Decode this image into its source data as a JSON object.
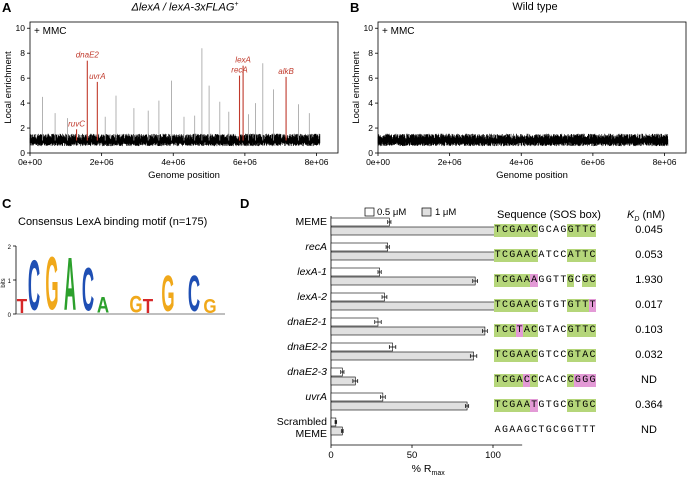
{
  "panel_a": {
    "letter": "A",
    "title_italic": "ΔlexA / lexA-3xFLAG",
    "title_sup": "+",
    "condition": "+ MMC",
    "ylabel": "Local enrichment",
    "xlabel": "Genome position",
    "yticks": [
      "0",
      "2",
      "4",
      "6",
      "8",
      "10"
    ],
    "xticks": [
      "0e+00",
      "2e+06",
      "4e+06",
      "6e+06",
      "8e+06"
    ],
    "colors": {
      "trace": "#000000",
      "peak": "#c0392b",
      "gray_peak": "#a0a0a0"
    },
    "peaks": [
      {
        "label": "ruvC",
        "pos": 1300000.0,
        "height": 1.9
      },
      {
        "label": "dnaE2",
        "pos": 1600000.0,
        "height": 7.4
      },
      {
        "label": "uvrA",
        "pos": 1880000.0,
        "height": 5.7
      },
      {
        "label": "recA",
        "pos": 5850000.0,
        "height": 6.2
      },
      {
        "label": "lexA",
        "pos": 5950000.0,
        "height": 7.0
      },
      {
        "label": "alkB",
        "pos": 7150000.0,
        "height": 6.1
      }
    ]
  },
  "panel_b": {
    "letter": "B",
    "title": "Wild type",
    "condition": "+ MMC",
    "ylabel": "Local enrichment",
    "xlabel": "Genome position",
    "yticks": [
      "0",
      "2",
      "4",
      "6",
      "8",
      "10"
    ],
    "xticks": [
      "0e+00",
      "2e+06",
      "4e+06",
      "6e+06",
      "8e+06"
    ]
  },
  "panel_c": {
    "letter": "C",
    "title": "Consensus LexA binding motif (n=175)",
    "ylabel": "bits",
    "yticks": [
      "0",
      "1",
      "2"
    ]
  },
  "panel_d": {
    "letter": "D",
    "legend": [
      "0.5 μM",
      "1 μM"
    ],
    "xlabel_main": "% R",
    "xlabel_sub": "max",
    "xticks": [
      "0",
      "50",
      "100"
    ],
    "seq_header": "Sequence (SOS box)",
    "kd_header_k": "K",
    "kd_header_sub": "D",
    "kd_header_unit": " (nM)",
    "colors": {
      "green": "#b5d67a",
      "pink": "#e39ad6",
      "bar_light": "#ffffff",
      "bar_dark": "#e0e0e0"
    }
  },
  "chart_data": {
    "type": "bar",
    "title": "",
    "xlabel": "% Rmax",
    "ylabel": "",
    "xlim": [
      0,
      120
    ],
    "categories": [
      "MEME",
      "recA",
      "lexA-1",
      "lexA-2",
      "dnaE2-1",
      "dnaE2-2",
      "dnaE2-3",
      "uvrA",
      "Scrambled MEME"
    ],
    "series": [
      {
        "name": "0.5 μM",
        "values": [
          36,
          35,
          30,
          33,
          29,
          38,
          7,
          32,
          3
        ],
        "errors": [
          1,
          1,
          1,
          1.5,
          2,
          2,
          1,
          1.5,
          0.5
        ]
      },
      {
        "name": "1 μM",
        "values": [
          110,
          108,
          89,
          104,
          95,
          88,
          15,
          84,
          7
        ],
        "errors": [
          1.5,
          1.5,
          1.5,
          1.5,
          1.5,
          2,
          1.5,
          1,
          0.5
        ]
      }
    ],
    "sequences": [
      {
        "seq": "TCGAACGCAGGTTC",
        "green": [
          0,
          1,
          2,
          3,
          4,
          5,
          10,
          11,
          12,
          13
        ],
        "pink": []
      },
      {
        "seq": "TCGAACATCCATTC",
        "green": [
          0,
          1,
          2,
          3,
          4,
          5,
          10,
          11,
          12,
          13
        ],
        "pink": []
      },
      {
        "seq": "TCGAAAGGTTGCGC",
        "green": [
          0,
          1,
          2,
          3,
          4,
          10,
          12,
          13
        ],
        "pink": [
          5
        ]
      },
      {
        "seq": "TCGAACGTGTGTTT",
        "green": [
          0,
          1,
          2,
          3,
          4,
          5,
          10,
          11,
          12
        ],
        "pink": [
          13
        ]
      },
      {
        "seq": "TCGTACGTACGTTC",
        "green": [
          0,
          1,
          2,
          4,
          5,
          10,
          11,
          12,
          13
        ],
        "pink": [
          3
        ]
      },
      {
        "seq": "TCGAACGTCCGTAC",
        "green": [
          0,
          1,
          2,
          3,
          4,
          5,
          10,
          11,
          12,
          13
        ],
        "pink": []
      },
      {
        "seq": "TCGACCCACCCGGG",
        "green": [
          0,
          1,
          2,
          3,
          5,
          10
        ],
        "pink": [
          4,
          11,
          12,
          13
        ]
      },
      {
        "seq": "TCGAATGTGCGTGC",
        "green": [
          0,
          1,
          2,
          3,
          4,
          10,
          11,
          12,
          13
        ],
        "pink": [
          5
        ]
      },
      {
        "seq": "AGAAGCTGCGGTTT",
        "green": [],
        "pink": []
      }
    ],
    "kd_nM": [
      "0.045",
      "0.053",
      "1.930",
      "0.017",
      "0.103",
      "0.032",
      "ND",
      "0.364",
      "ND"
    ]
  }
}
